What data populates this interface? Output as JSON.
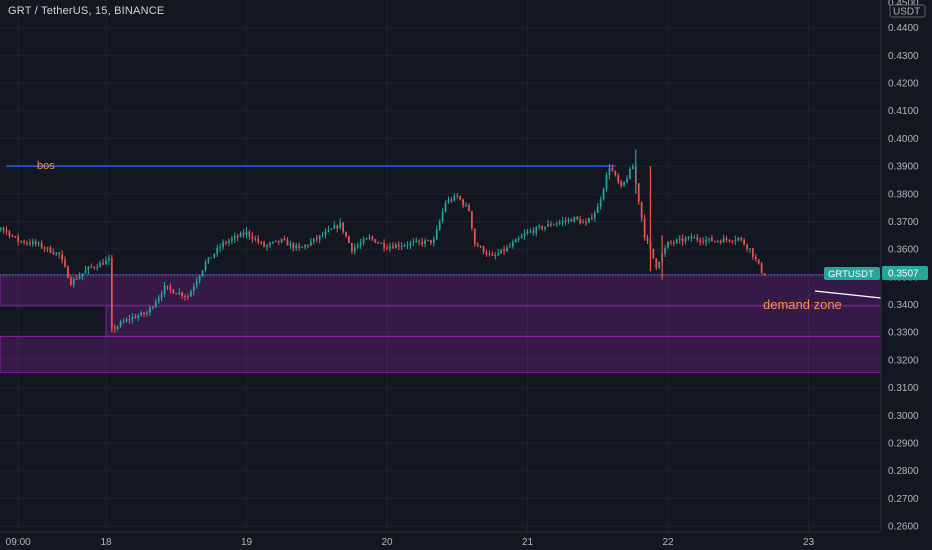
{
  "header": {
    "title": "GRT / TetherUS, 15, BINANCE",
    "currency": "USDT",
    "price_tag_label": "GRTUSDT",
    "price_tag_value": "0.3507",
    "top_partial_tick": "0.4500"
  },
  "chart_data": {
    "type": "candlestick",
    "symbol": "GRTUSDT",
    "interval": "15",
    "exchange": "BINANCE",
    "last_price": 0.3507,
    "y_axis": {
      "ticks": [
        "0.4400",
        "0.4300",
        "0.4200",
        "0.4100",
        "0.4000",
        "0.3900",
        "0.3800",
        "0.3700",
        "0.3600",
        "0.3500",
        "0.3400",
        "0.3300",
        "0.3200",
        "0.3100",
        "0.3000",
        "0.2900",
        "0.2800",
        "0.2700",
        "0.2600"
      ],
      "range": [
        0.2575,
        0.4525
      ]
    },
    "x_axis": {
      "ticks": [
        "09:00",
        "18",
        "19",
        "20",
        "21",
        "22",
        "23"
      ]
    },
    "annotations": [
      {
        "label": "bos",
        "kind": "horizontal-line",
        "price": 0.39,
        "x_from": "17 07:00",
        "x_to": "21 15:00",
        "color": "#2962ff"
      },
      {
        "label": "demand zone",
        "kind": "zone",
        "price_top": 0.3507,
        "price_bottom": 0.3395,
        "color": "#8e24aa"
      },
      {
        "label": "",
        "kind": "zone",
        "price_top": 0.3395,
        "price_bottom": 0.3285,
        "x_from": "18 00:00",
        "color": "#8e24aa"
      },
      {
        "label": "",
        "kind": "zone",
        "price_top": 0.3285,
        "price_bottom": 0.3155,
        "color": "#8e24aa"
      }
    ],
    "price_path": [
      [
        "17 00:00",
        0.364
      ],
      [
        "17 03:00",
        0.362
      ],
      [
        "17 06:00",
        0.368
      ],
      [
        "17 09:00",
        0.363
      ],
      [
        "17 12:00",
        0.362
      ],
      [
        "17 16:00",
        0.358
      ],
      [
        "17 18:00",
        0.348
      ],
      [
        "17 21:00",
        0.353
      ],
      [
        "18 00:30",
        0.356
      ],
      [
        "18 01:00",
        0.331
      ],
      [
        "18 04:00",
        0.335
      ],
      [
        "18 07:00",
        0.337
      ],
      [
        "18 10:00",
        0.346
      ],
      [
        "18 14:00",
        0.343
      ],
      [
        "18 17:00",
        0.355
      ],
      [
        "18 20:00",
        0.362
      ],
      [
        "19 00:00",
        0.366
      ],
      [
        "19 03:00",
        0.361
      ],
      [
        "19 06:00",
        0.363
      ],
      [
        "19 09:00",
        0.36
      ],
      [
        "19 13:00",
        0.365
      ],
      [
        "19 16:00",
        0.369
      ],
      [
        "19 18:00",
        0.36
      ],
      [
        "19 21:00",
        0.364
      ],
      [
        "20 00:00",
        0.361
      ],
      [
        "20 04:00",
        0.362
      ],
      [
        "20 08:00",
        0.363
      ],
      [
        "20 10:00",
        0.377
      ],
      [
        "20 12:00",
        0.379
      ],
      [
        "20 14:00",
        0.374
      ],
      [
        "20 15:00",
        0.362
      ],
      [
        "20 18:00",
        0.357
      ],
      [
        "20 21:00",
        0.361
      ],
      [
        "21 00:00",
        0.366
      ],
      [
        "21 04:00",
        0.369
      ],
      [
        "21 08:00",
        0.371
      ],
      [
        "21 10:00",
        0.369
      ],
      [
        "21 12:00",
        0.375
      ],
      [
        "21 14:00",
        0.39
      ],
      [
        "21 16:00",
        0.382
      ],
      [
        "21 18:00",
        0.39
      ],
      [
        "21 20:00",
        0.365
      ],
      [
        "21 22:00",
        0.354
      ],
      [
        "22 00:00",
        0.362
      ],
      [
        "22 04:00",
        0.364
      ],
      [
        "22 08:00",
        0.363
      ],
      [
        "22 12:00",
        0.364
      ],
      [
        "22 14:00",
        0.36
      ],
      [
        "22 16:00",
        0.352
      ],
      [
        "22 16:45",
        0.3507
      ]
    ]
  }
}
